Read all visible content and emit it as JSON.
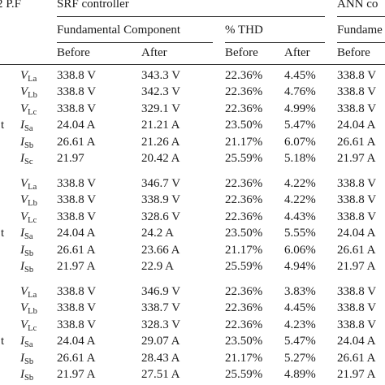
{
  "header": {
    "pf_label": "2 P.F",
    "srf_controller": "SRF controller",
    "ann_controller": "ANN co",
    "fundamental_component": "Fundamental Component",
    "thd": "% THD",
    "ann_fundamental": "Fundame",
    "before": "Before",
    "after": "After"
  },
  "groups": [
    {
      "rows": [
        {
          "stub": "",
          "sym": "V",
          "sub": "La",
          "fund_before": "338.8 V",
          "fund_after": "343.3 V",
          "thd_before": "22.36%",
          "thd_after": "4.45%",
          "ann_before": "338.8 V"
        },
        {
          "stub": "",
          "sym": "V",
          "sub": "Lb",
          "fund_before": "338.8 V",
          "fund_after": "342.3 V",
          "thd_before": "22.36%",
          "thd_after": "4.76%",
          "ann_before": "338.8 V"
        },
        {
          "stub": "",
          "sym": "V",
          "sub": "Lc",
          "fund_before": "338.8 V",
          "fund_after": "329.1 V",
          "thd_before": "22.36%",
          "thd_after": "4.99%",
          "ann_before": "338.8 V"
        },
        {
          "stub": "t",
          "sym": "I",
          "sub": "Sa",
          "fund_before": "24.04 A",
          "fund_after": "21.21 A",
          "thd_before": "23.50%",
          "thd_after": "5.47%",
          "ann_before": "24.04 A"
        },
        {
          "stub": "",
          "sym": "I",
          "sub": "Sb",
          "fund_before": "26.61 A",
          "fund_after": "21.26 A",
          "thd_before": "21.17%",
          "thd_after": "6.07%",
          "ann_before": "26.61 A"
        },
        {
          "stub": "",
          "sym": "I",
          "sub": "Sc",
          "fund_before": "21.97",
          "fund_after": "20.42 A",
          "thd_before": "25.59%",
          "thd_after": "5.18%",
          "ann_before": "21.97 A"
        }
      ]
    },
    {
      "rows": [
        {
          "stub": "",
          "sym": "V",
          "sub": "La",
          "fund_before": "338.8 V",
          "fund_after": "346.7 V",
          "thd_before": "22.36%",
          "thd_after": "4.22%",
          "ann_before": "338.8 V"
        },
        {
          "stub": "",
          "sym": "V",
          "sub": "Lb",
          "fund_before": "338.8 V",
          "fund_after": "338.9 V",
          "thd_before": "22.36%",
          "thd_after": "4.22%",
          "ann_before": "338.8 V"
        },
        {
          "stub": "",
          "sym": "V",
          "sub": "Lc",
          "fund_before": "338.8 V",
          "fund_after": "328.6 V",
          "thd_before": "22.36%",
          "thd_after": "4.43%",
          "ann_before": "338.8 V"
        },
        {
          "stub": "t",
          "sym": "I",
          "sub": "Sa",
          "fund_before": "24.04 A",
          "fund_after": "24.2 A",
          "thd_before": "23.50%",
          "thd_after": "5.55%",
          "ann_before": "24.04 A"
        },
        {
          "stub": "",
          "sym": "I",
          "sub": "Sb",
          "fund_before": "26.61 A",
          "fund_after": "23.66 A",
          "thd_before": "21.17%",
          "thd_after": "6.06%",
          "ann_before": "26.61 A"
        },
        {
          "stub": "",
          "sym": "I",
          "sub": "Sb",
          "fund_before": "21.97 A",
          "fund_after": "22.9 A",
          "thd_before": "25.59%",
          "thd_after": "4.94%",
          "ann_before": "21.97 A"
        }
      ]
    },
    {
      "rows": [
        {
          "stub": "",
          "sym": "V",
          "sub": "La",
          "fund_before": "338.8 V",
          "fund_after": "346.9 V",
          "thd_before": "22.36%",
          "thd_after": "3.83%",
          "ann_before": "338.8 V"
        },
        {
          "stub": "",
          "sym": "V",
          "sub": "Lb",
          "fund_before": "338.8 V",
          "fund_after": "338.7 V",
          "thd_before": "22.36%",
          "thd_after": "4.45%",
          "ann_before": "338.8 V"
        },
        {
          "stub": "",
          "sym": "V",
          "sub": "Lc",
          "fund_before": "338.8 V",
          "fund_after": "328.3 V",
          "thd_before": "22.36%",
          "thd_after": "4.23%",
          "ann_before": "338.8 V"
        },
        {
          "stub": "t",
          "sym": "I",
          "sub": "Sa",
          "fund_before": "24.04 A",
          "fund_after": "29.07 A",
          "thd_before": "23.50%",
          "thd_after": "5.47%",
          "ann_before": "24.04 A"
        },
        {
          "stub": "",
          "sym": "I",
          "sub": "Sb",
          "fund_before": "26.61 A",
          "fund_after": "28.43 A",
          "thd_before": "21.17%",
          "thd_after": "5.27%",
          "ann_before": "26.61 A"
        },
        {
          "stub": "",
          "sym": "I",
          "sub": "Sb",
          "fund_before": "21.97 A",
          "fund_after": "27.51 A",
          "thd_before": "25.59%",
          "thd_after": "4.89%",
          "ann_before": "21.97 A"
        }
      ]
    }
  ]
}
